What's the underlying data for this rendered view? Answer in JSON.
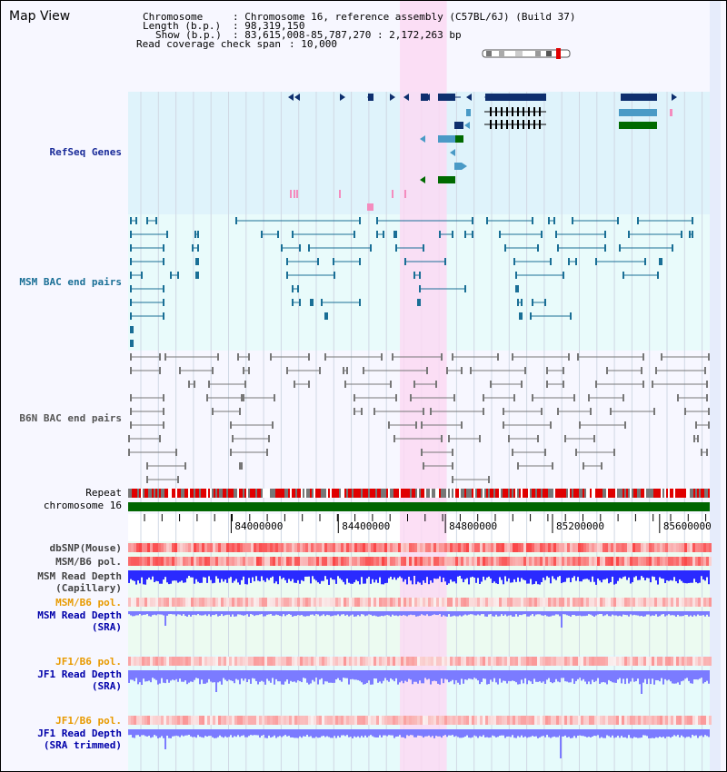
{
  "view_title": "Map View",
  "header": {
    "chromosome_key": "Chromosome",
    "chromosome_value": ": Chromosome 16, reference assembly (C57BL/6J) (Build 37)",
    "length_key": "Length (b.p.)",
    "length_value": ": 98,319,150",
    "show_key": "Show (b.p.)",
    "show_value": ": 83,615,008-85,787,270 : 2,172,263 bp",
    "coverage_key": "Read coverage check span",
    "coverage_value": ": 10,000"
  },
  "tracks": {
    "refseq": "RefSeq Genes",
    "msm_bac": "MSM BAC end pairs",
    "b6n_bac": "B6N BAC end pairs",
    "repeat": "Repeat",
    "chromosome": "chromosome 16",
    "dbsnp": "dbSNP(Mouse)",
    "msm_b6_pol": "MSM/B6 pol.",
    "msm_depth_cap_1": "MSM Read Depth",
    "msm_depth_cap_2": "(Capillary)",
    "msm_b6_pol_sra": "MSM/B6 pol.",
    "msm_depth_sra_1": "MSM Read Depth",
    "msm_depth_sra_2": "(SRA)",
    "jf1_b6_pol": "JF1/B6 pol.",
    "jf1_depth_sra_1": "JF1 Read Depth",
    "jf1_depth_sra_2": "(SRA)",
    "jf1_b6_pol_trim": "JF1/B6 pol.",
    "jf1_depth_trim_1": "JF1 Read Depth",
    "jf1_depth_trim_2": "(SRA trimmed)"
  },
  "axis": {
    "ticks": [
      {
        "pos_bp": 84000000,
        "label": "84000000"
      },
      {
        "pos_bp": 84400000,
        "label": "84400000"
      },
      {
        "pos_bp": 84800000,
        "label": "84800000"
      },
      {
        "pos_bp": 85200000,
        "label": "85200000"
      },
      {
        "pos_bp": 85600000,
        "label": "85600000"
      }
    ],
    "start_bp": 83615008,
    "end_bp": 85787270
  },
  "highlight": {
    "start_bp": 84630000,
    "end_bp": 84805000
  },
  "colors": {
    "refseq_bg": "#dff3fb",
    "msm_bg": "#e9fbfb",
    "b6n_bg": "#f7f7ff",
    "highlight": "#fbd9f3",
    "gene_dark": "#0e2f6e",
    "gene_mid": "#4a9ac6",
    "gene_green": "#006a00",
    "msm_feature": "#1a6f96",
    "b6n_feature": "#777777",
    "chromosome_bar": "#006600",
    "depth_blue": "#2a2aff",
    "depth_light": "#7b7bff",
    "label_refseq": "#1a2b99",
    "label_msm": "#1a6f96",
    "label_b6n": "#555555",
    "label_orange": "#e89a00",
    "label_navy": "#0000aa"
  }
}
